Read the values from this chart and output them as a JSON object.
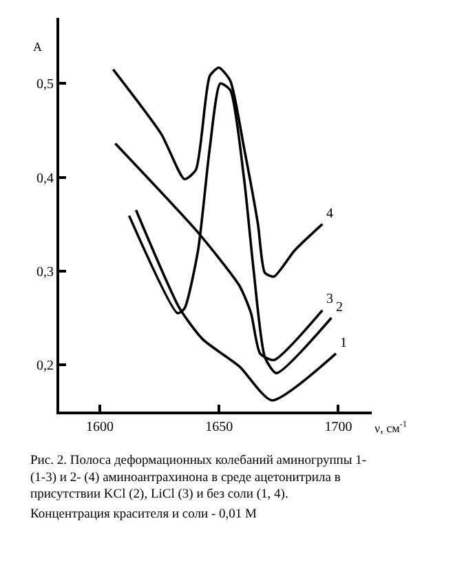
{
  "chart_data": {
    "type": "line",
    "xlabel": "ν, см$^{-1}$",
    "ylabel": "A",
    "xlim": [
      1583,
      1714
    ],
    "ylim": [
      0.15,
      0.57
    ],
    "xticks": [
      1600,
      1650,
      1700
    ],
    "yticks": [
      {
        "value": 0.2,
        "label": "0,2"
      },
      {
        "value": 0.3,
        "label": "0,3"
      },
      {
        "value": 0.4,
        "label": "0,4"
      },
      {
        "value": 0.5,
        "label": "0,5"
      }
    ],
    "legend": false,
    "marker": "none",
    "line_style": "solid",
    "series": [
      {
        "name": "1",
        "color": "#000000",
        "x": [
          1615.2,
          1633.5,
          1643.2,
          1658.6,
          1672.1,
          1699
        ],
        "values": [
          0.365,
          0.26,
          0.227,
          0.198,
          0.162,
          0.212
        ]
      },
      {
        "name": "2",
        "color": "#000000",
        "x": [
          1612.3,
          1632.6,
          1635.5,
          1641.2,
          1646.1,
          1650.5,
          1654.7,
          1660.5,
          1664.4,
          1669.2,
          1674,
          1697.1
        ],
        "values": [
          0.359,
          0.255,
          0.26,
          0.322,
          0.431,
          0.5,
          0.493,
          0.398,
          0.303,
          0.208,
          0.191,
          0.25
        ]
      },
      {
        "name": "3",
        "color": "#000000",
        "x": [
          1606.5,
          1641.2,
          1658.6,
          1663.4,
          1667.2,
          1673,
          1693.3
        ],
        "values": [
          0.436,
          0.341,
          0.284,
          0.255,
          0.212,
          0.205,
          0.258
        ]
      },
      {
        "name": "4",
        "color": "#000000",
        "x": [
          1605.6,
          1625.8,
          1635.5,
          1640.3,
          1646.1,
          1649.9,
          1654.7,
          1660.5,
          1666.3,
          1669.2,
          1673,
          1681.7,
          1693.3
        ],
        "values": [
          0.515,
          0.446,
          0.398,
          0.408,
          0.508,
          0.517,
          0.503,
          0.431,
          0.35,
          0.298,
          0.294,
          0.322,
          0.35
        ]
      }
    ],
    "annotations": [
      "Рис. 2. Полоса деформационных колебаний аминогруппы 1- (1-3) и 2- (4) аминоантрахинона в среде ацетонитрила в присутствии KCl (2), LiCl (3) и без соли (1, 4).",
      "Концентрация красителя и соли - 0,01 М"
    ]
  }
}
